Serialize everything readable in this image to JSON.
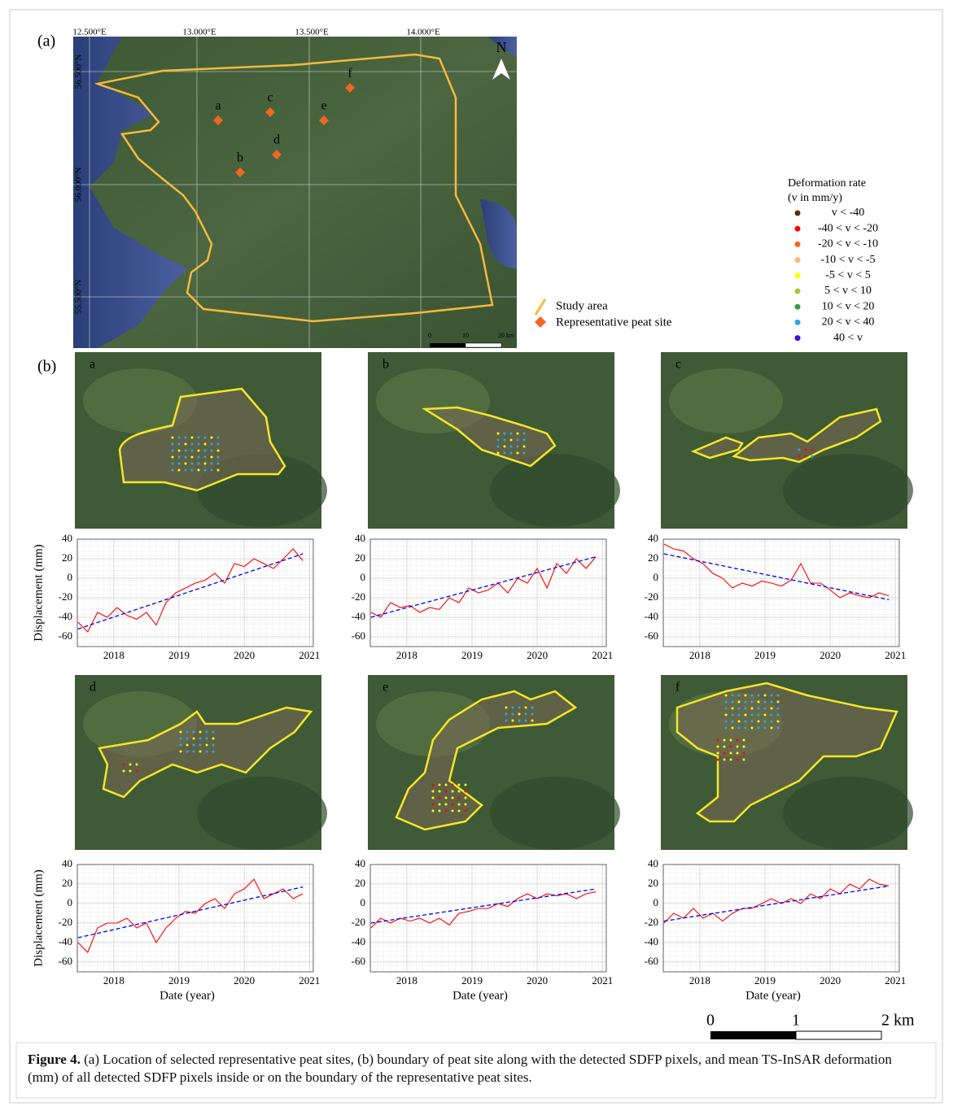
{
  "panel_a": {
    "label": "(a)",
    "lon_labels": [
      "12.500°E",
      "13.000°E",
      "13.500°E",
      "14.000°E"
    ],
    "lat_labels": [
      "56.500°N",
      "56.000°N",
      "55.500°N"
    ],
    "sites": [
      "a",
      "b",
      "c",
      "d",
      "e",
      "f"
    ],
    "north": "N",
    "scale_labels": [
      "0",
      "10",
      "20 km"
    ],
    "legend": {
      "study_area": "Study area",
      "peat_site": "Representative peat site"
    },
    "study_area_color": "#f6b93b",
    "site_color": "#f26522"
  },
  "deformation_legend": {
    "title": [
      "Deformation rate",
      "(v in mm/y)"
    ],
    "items": [
      {
        "label": "v < -40",
        "color": "#5a2d0c"
      },
      {
        "label": "-40 < v < -20",
        "color": "#ff0000"
      },
      {
        "label": "-20 < v < -10",
        "color": "#f26522"
      },
      {
        "label": "-10 < v < -5",
        "color": "#f9b97a"
      },
      {
        "label": "-5 < v < 5",
        "color": "#ffff00"
      },
      {
        "label": "5 < v < 10",
        "color": "#9acd32"
      },
      {
        "label": "10 < v < 20",
        "color": "#2e9e3e"
      },
      {
        "label": "20 < v < 40",
        "color": "#29a8e0"
      },
      {
        "label": "40 < v",
        "color": "#3b10d8"
      }
    ]
  },
  "panel_b": {
    "label": "(b)"
  },
  "chart_data": [
    {
      "type": "line",
      "panel": "a",
      "ylabel": "Displacement (mm)",
      "x": [
        2017.45,
        2017.6,
        2017.75,
        2017.9,
        2018.05,
        2018.2,
        2018.35,
        2018.5,
        2018.65,
        2018.8,
        2018.95,
        2019.1,
        2019.25,
        2019.4,
        2019.55,
        2019.7,
        2019.85,
        2020.0,
        2020.15,
        2020.3,
        2020.45,
        2020.6,
        2020.75,
        2020.9
      ],
      "series": [
        {
          "color": "#ff0000",
          "values": [
            -45,
            -55,
            -35,
            -40,
            -30,
            -38,
            -42,
            -35,
            -48,
            -25,
            -15,
            -10,
            -5,
            -2,
            5,
            -5,
            15,
            12,
            20,
            15,
            10,
            20,
            30,
            18
          ]
        }
      ],
      "trend": {
        "color": "#0000ff",
        "x": [
          2017.45,
          2020.9
        ],
        "values": [
          -52,
          25
        ]
      },
      "xlim": [
        2017.44,
        2021.06
      ],
      "ylim": [
        -70,
        40
      ],
      "xticks": [
        2018,
        2019,
        2020,
        2021
      ],
      "yticks": [
        40,
        20,
        0,
        -20,
        -40,
        -60
      ],
      "grid": true
    },
    {
      "type": "line",
      "panel": "b",
      "x": [
        2017.45,
        2017.6,
        2017.75,
        2017.9,
        2018.05,
        2018.2,
        2018.35,
        2018.5,
        2018.65,
        2018.8,
        2018.95,
        2019.1,
        2019.25,
        2019.4,
        2019.55,
        2019.7,
        2019.85,
        2020.0,
        2020.15,
        2020.3,
        2020.45,
        2020.6,
        2020.75,
        2020.9
      ],
      "series": [
        {
          "color": "#ff0000",
          "values": [
            -35,
            -40,
            -25,
            -30,
            -28,
            -35,
            -30,
            -32,
            -20,
            -25,
            -10,
            -15,
            -12,
            -5,
            -15,
            0,
            -5,
            10,
            -10,
            15,
            5,
            20,
            10,
            22
          ]
        }
      ],
      "trend": {
        "color": "#0000ff",
        "x": [
          2017.45,
          2020.9
        ],
        "values": [
          -40,
          22
        ]
      },
      "xlim": [
        2017.44,
        2021.06
      ],
      "ylim": [
        -70,
        40
      ],
      "xticks": [
        2018,
        2019,
        2020,
        2021
      ],
      "yticks": [
        40,
        20,
        0,
        -20,
        -40,
        -60
      ],
      "grid": true
    },
    {
      "type": "line",
      "panel": "c",
      "x": [
        2017.45,
        2017.6,
        2017.75,
        2017.9,
        2018.05,
        2018.2,
        2018.35,
        2018.5,
        2018.65,
        2018.8,
        2018.95,
        2019.1,
        2019.25,
        2019.4,
        2019.55,
        2019.7,
        2019.85,
        2020.0,
        2020.15,
        2020.3,
        2020.45,
        2020.6,
        2020.75,
        2020.9
      ],
      "series": [
        {
          "color": "#ff0000",
          "values": [
            35,
            30,
            28,
            20,
            15,
            5,
            0,
            -10,
            -5,
            -8,
            -3,
            -5,
            -8,
            -2,
            15,
            -5,
            -5,
            -12,
            -20,
            -15,
            -18,
            -20,
            -15,
            -18
          ]
        }
      ],
      "trend": {
        "color": "#0000ff",
        "x": [
          2017.45,
          2020.9
        ],
        "values": [
          25,
          -22
        ]
      },
      "xlim": [
        2017.44,
        2021.06
      ],
      "ylim": [
        -70,
        40
      ],
      "xticks": [
        2018,
        2019,
        2020,
        2021
      ],
      "yticks": [
        40,
        20,
        0,
        -20,
        -40,
        -60
      ],
      "grid": true
    },
    {
      "type": "line",
      "panel": "d",
      "ylabel": "Displacement (mm)",
      "xlabel": "Date (year)",
      "x": [
        2017.45,
        2017.6,
        2017.75,
        2017.9,
        2018.05,
        2018.2,
        2018.35,
        2018.5,
        2018.65,
        2018.8,
        2018.95,
        2019.1,
        2019.25,
        2019.4,
        2019.55,
        2019.7,
        2019.85,
        2020.0,
        2020.15,
        2020.3,
        2020.45,
        2020.6,
        2020.75,
        2020.9
      ],
      "series": [
        {
          "color": "#ff0000",
          "values": [
            -40,
            -50,
            -25,
            -20,
            -20,
            -15,
            -25,
            -20,
            -40,
            -25,
            -15,
            -8,
            -10,
            0,
            5,
            -5,
            10,
            15,
            25,
            5,
            10,
            15,
            5,
            10
          ]
        }
      ],
      "trend": {
        "color": "#0000ff",
        "x": [
          2017.45,
          2020.9
        ],
        "values": [
          -35,
          17
        ]
      },
      "xlim": [
        2017.44,
        2021.06
      ],
      "ylim": [
        -70,
        40
      ],
      "xticks": [
        2018,
        2019,
        2020,
        2021
      ],
      "yticks": [
        40,
        20,
        0,
        -20,
        -40,
        -60
      ],
      "grid": true
    },
    {
      "type": "line",
      "panel": "e",
      "xlabel": "Date (year)",
      "x": [
        2017.45,
        2017.6,
        2017.75,
        2017.9,
        2018.05,
        2018.2,
        2018.35,
        2018.5,
        2018.65,
        2018.8,
        2018.95,
        2019.1,
        2019.25,
        2019.4,
        2019.55,
        2019.7,
        2019.85,
        2020.0,
        2020.15,
        2020.3,
        2020.45,
        2020.6,
        2020.75,
        2020.9
      ],
      "series": [
        {
          "color": "#ff0000",
          "values": [
            -25,
            -15,
            -20,
            -15,
            -18,
            -15,
            -20,
            -15,
            -22,
            -10,
            -8,
            -5,
            -5,
            0,
            -3,
            5,
            10,
            5,
            10,
            8,
            10,
            5,
            10,
            12
          ]
        }
      ],
      "trend": {
        "color": "#0000ff",
        "x": [
          2017.45,
          2020.9
        ],
        "values": [
          -20,
          15
        ]
      },
      "xlim": [
        2017.44,
        2021.06
      ],
      "ylim": [
        -70,
        40
      ],
      "xticks": [
        2018,
        2019,
        2020,
        2021
      ],
      "yticks": [
        40,
        20,
        0,
        -20,
        -40,
        -60
      ],
      "grid": true
    },
    {
      "type": "line",
      "panel": "f",
      "xlabel": "Date (year)",
      "x": [
        2017.45,
        2017.6,
        2017.75,
        2017.9,
        2018.05,
        2018.2,
        2018.35,
        2018.5,
        2018.65,
        2018.8,
        2018.95,
        2019.1,
        2019.25,
        2019.4,
        2019.55,
        2019.7,
        2019.85,
        2020.0,
        2020.15,
        2020.3,
        2020.45,
        2020.6,
        2020.75,
        2020.9
      ],
      "series": [
        {
          "color": "#ff0000",
          "values": [
            -20,
            -10,
            -15,
            -5,
            -15,
            -10,
            -18,
            -10,
            -5,
            -5,
            0,
            5,
            0,
            5,
            0,
            10,
            5,
            15,
            10,
            20,
            15,
            25,
            20,
            18
          ]
        }
      ],
      "trend": {
        "color": "#0000ff",
        "x": [
          2017.45,
          2020.9
        ],
        "values": [
          -18,
          18
        ]
      },
      "xlim": [
        2017.44,
        2021.06
      ],
      "ylim": [
        -70,
        40
      ],
      "xticks": [
        2018,
        2019,
        2020,
        2021
      ],
      "yticks": [
        40,
        20,
        0,
        -20,
        -40,
        -60
      ],
      "grid": true
    }
  ],
  "scale_bar": {
    "labels": [
      "0",
      "1",
      "2 km"
    ]
  },
  "caption": {
    "label": "Figure 4.",
    "text": "(a) Location of selected representative peat sites, (b) boundary of peat site along with the detected SDFP pixels, and mean TS-InSAR deformation (mm) of all detected SDFP pixels inside or on the boundary of the representative peat sites."
  }
}
